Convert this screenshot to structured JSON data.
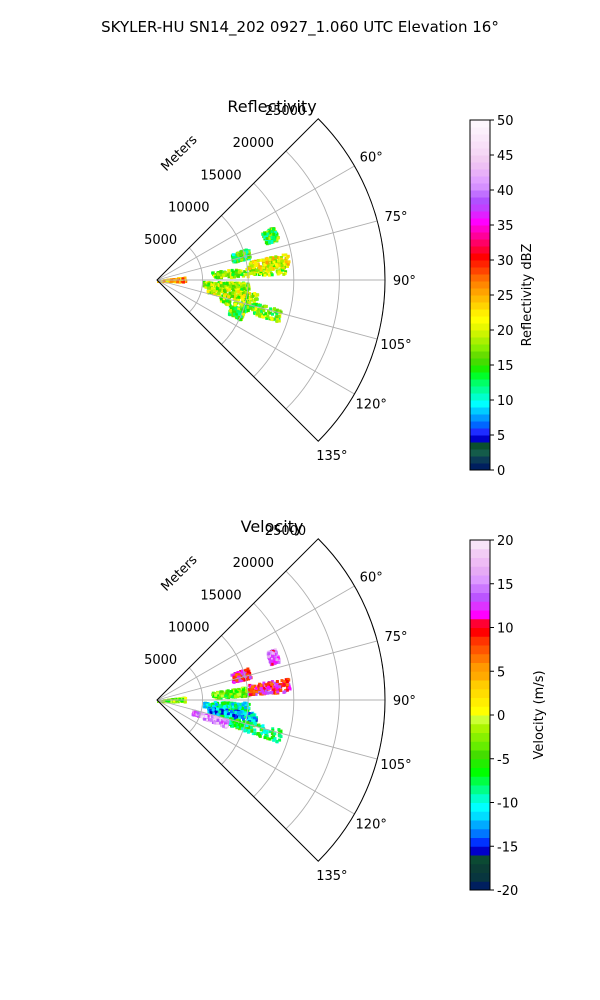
{
  "suptitle": "SKYLER-HU  SN14_202  0927_1.060 UTC Elevation 16°",
  "colors": {
    "background": "#ffffff",
    "grid": "#b0b0b0",
    "axis": "#000000"
  },
  "chart_data": [
    {
      "type": "polar-sector-heatmap",
      "title": "Reflectivity",
      "radial_label": "Meters",
      "r_ticks": [
        5000,
        10000,
        15000,
        20000,
        25000
      ],
      "r_max": 25000,
      "theta_ticks_deg": [
        60,
        75,
        90,
        105,
        120,
        135
      ],
      "theta_range_deg": [
        45,
        135
      ],
      "grid": true,
      "colorbar": {
        "label": "Reflectivity dBZ",
        "range": [
          0,
          50
        ],
        "ticks": [
          0,
          5,
          10,
          15,
          20,
          25,
          30,
          35,
          40,
          45,
          50
        ],
        "colormap": "NWS reflectivity"
      },
      "echo_regions": [
        {
          "az": 87,
          "r0": 0,
          "r1": 3000,
          "dbz": 25
        },
        {
          "az": 84,
          "r0": 6000,
          "r1": 14000,
          "dbz": 18
        },
        {
          "az": 81,
          "r0": 10000,
          "r1": 14500,
          "dbz": 21
        },
        {
          "az": 94,
          "r0": 5000,
          "r1": 10000,
          "dbz": 18
        },
        {
          "az": 100,
          "r0": 5500,
          "r1": 11000,
          "dbz": 19
        },
        {
          "az": 106,
          "r0": 7000,
          "r1": 14000,
          "dbz": 17
        },
        {
          "az": 73,
          "r0": 8500,
          "r1": 10500,
          "dbz": 14
        },
        {
          "az": 68,
          "r0": 12500,
          "r1": 14000,
          "dbz": 15
        },
        {
          "az": 112,
          "r0": 8500,
          "r1": 10000,
          "dbz": 16
        }
      ]
    },
    {
      "type": "polar-sector-heatmap",
      "title": "Velocity",
      "radial_label": "Meters",
      "r_ticks": [
        5000,
        10000,
        15000,
        20000,
        25000
      ],
      "r_max": 25000,
      "theta_ticks_deg": [
        60,
        75,
        90,
        105,
        120,
        135
      ],
      "theta_range_deg": [
        45,
        135
      ],
      "grid": true,
      "colorbar": {
        "label": "Velocity (m/s)",
        "range": [
          -20,
          20
        ],
        "ticks": [
          -20,
          -15,
          -10,
          -5,
          0,
          5,
          10,
          15,
          20
        ],
        "colormap": "NWS velocity"
      },
      "echo_regions": [
        {
          "az": 87,
          "r0": 0,
          "r1": 3000,
          "ms": -3
        },
        {
          "az": 84,
          "r0": 6000,
          "r1": 10000,
          "ms": -4
        },
        {
          "az": 83,
          "r0": 10000,
          "r1": 14500,
          "ms": 10
        },
        {
          "az": 94,
          "r0": 5000,
          "r1": 10000,
          "ms": -9
        },
        {
          "az": 100,
          "r0": 5500,
          "r1": 11000,
          "ms": -12
        },
        {
          "az": 106,
          "r0": 7000,
          "r1": 14000,
          "ms": -7
        },
        {
          "az": 73,
          "r0": 8500,
          "r1": 10500,
          "ms": 10
        },
        {
          "az": 69,
          "r0": 13000,
          "r1": 14000,
          "ms": 14
        },
        {
          "az": 108,
          "r0": 4000,
          "r1": 8000,
          "ms": 16
        }
      ]
    }
  ]
}
